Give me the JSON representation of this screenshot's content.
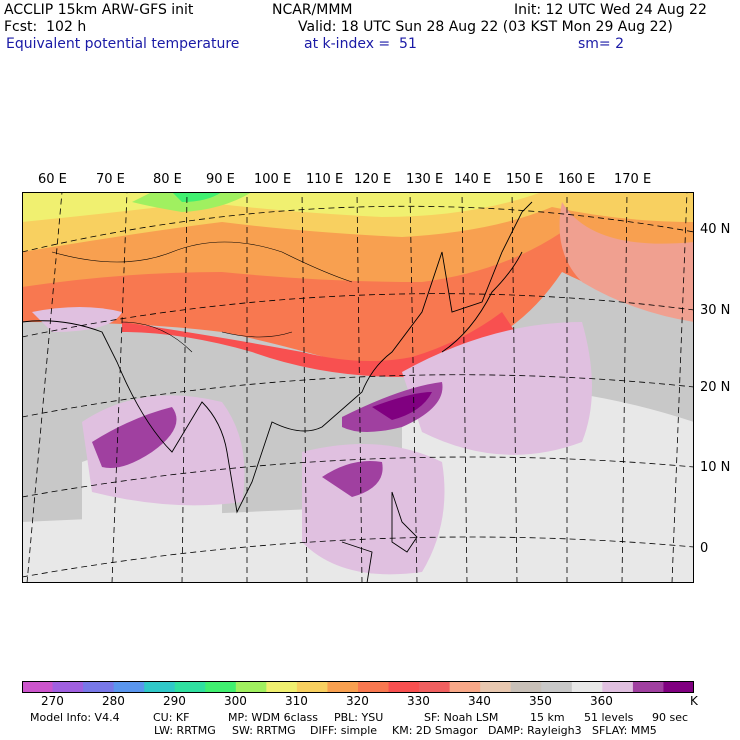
{
  "header": {
    "model": "ACCLIP 15km ARW-GFS init",
    "org": "NCAR/MMM",
    "init": "Init: 12 UTC Wed 24 Aug 22",
    "fcst": "Fcst:  102 h",
    "valid": "Valid: 18 UTC Sun 28 Aug 22 (03 KST Mon 29 Aug 22)",
    "field": "Equivalent potential temperature",
    "level": "at k-index =  51",
    "smooth": "sm= 2"
  },
  "map": {
    "lon_labels": [
      "60 E",
      "70 E",
      "80 E",
      "90 E",
      "100 E",
      "110 E",
      "120 E",
      "130 E",
      "140 E",
      "150 E",
      "160 E",
      "170 E"
    ],
    "lat_labels": [
      "40 N",
      "30 N",
      "20 N",
      "10 N",
      "0"
    ]
  },
  "colorbar": {
    "colors": [
      "#cc55cc",
      "#a060e0",
      "#7878e8",
      "#5a96ee",
      "#30c8c8",
      "#30e0a0",
      "#40f070",
      "#a0f060",
      "#f0f070",
      "#f8d060",
      "#f8a050",
      "#f87850",
      "#f85050",
      "#f06060",
      "#f8a888",
      "#e8c8b0",
      "#c8c0b8",
      "#c8c8c8",
      "#e8e8e8",
      "#e0c0e0",
      "#a040a0",
      "#800080"
    ],
    "labels": [
      "270",
      "280",
      "290",
      "300",
      "310",
      "320",
      "330",
      "340",
      "350",
      "360"
    ],
    "unit": "K"
  },
  "footer": {
    "line1": [
      "Model Info: V4.4",
      "CU: KF",
      "MP: WDM 6class",
      "PBL: YSU",
      "SF: Noah LSM",
      "15 km",
      "51 levels",
      "90 sec"
    ],
    "line2": [
      "LW: RRTMG",
      "SW: RRTMG",
      "DIFF: simple",
      "KM: 2D Smagor",
      "DAMP: Rayleigh3",
      "SFLAY: MM5"
    ]
  }
}
